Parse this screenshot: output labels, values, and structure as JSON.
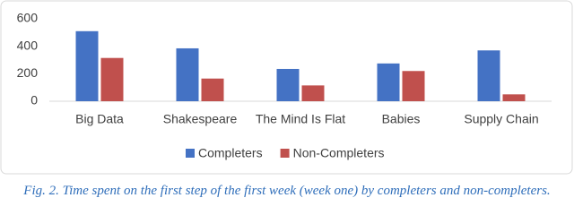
{
  "chart_data": {
    "type": "bar",
    "categories": [
      "Big Data",
      "Shakespeare",
      "The Mind Is Flat",
      "Babies",
      "Supply Chain"
    ],
    "series": [
      {
        "name": "Completers",
        "color": "#4472c4",
        "values": [
          510,
          385,
          235,
          275,
          370
        ]
      },
      {
        "name": "Non-Completers",
        "color": "#c0504d",
        "values": [
          315,
          165,
          115,
          220,
          50
        ]
      }
    ],
    "ylim": [
      0,
      600
    ],
    "yticks": [
      0,
      200,
      400,
      600
    ],
    "grid": false,
    "legend": "bottom",
    "caption": "Fig. 2. Time spent on the first step of the first week (week one) by completers and non-completers."
  }
}
